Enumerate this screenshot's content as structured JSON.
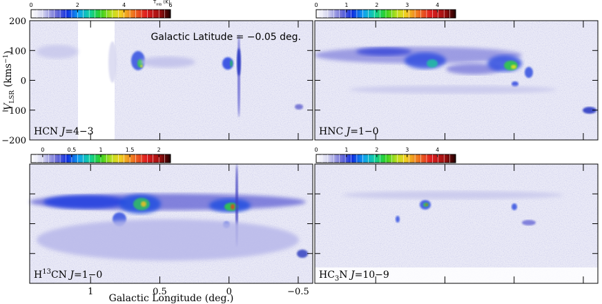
{
  "figure": {
    "annotation": "Galactic Latitude = −0.05 deg.",
    "x_axis": {
      "label": "Galactic Longitude (deg.)",
      "lim": [
        1.44,
        -0.605
      ],
      "ticks": [
        1,
        0.5,
        0,
        {
          "value": -0.5,
          "label": "−0.5"
        }
      ]
    },
    "y_axis": {
      "label": [
        "V",
        "LSR",
        " (kms",
        "−1",
        ")"
      ],
      "lim": [
        -200,
        200
      ],
      "ticks": [
        200,
        100,
        0,
        {
          "value": -100,
          "label": "−100"
        },
        {
          "value": -200,
          "label": "−200"
        }
      ]
    },
    "colorbar_title": [
      "T",
      "mb",
      " (K)"
    ],
    "panels": [
      {
        "label": [
          "HCN ",
          "J",
          "=4−3"
        ],
        "colorbar": {
          "lim": [
            0,
            6
          ],
          "ticks": [
            0,
            2,
            4,
            6
          ]
        }
      },
      {
        "label": [
          "HNC ",
          "J",
          "=1−0"
        ],
        "colorbar": {
          "lim": [
            0,
            4.6
          ],
          "ticks": [
            0,
            1,
            2,
            3,
            4
          ]
        }
      },
      {
        "label": [
          "H",
          "13",
          "CN ",
          "J",
          "=1−0"
        ],
        "colorbar": {
          "lim": [
            -0.2,
            2.2
          ],
          "ticks": [
            0,
            0.5,
            1,
            1.5,
            2
          ]
        }
      },
      {
        "label": [
          "HC",
          "3",
          "N ",
          "J",
          "=10−9"
        ],
        "colorbar": {
          "lim": [
            0,
            4.6
          ],
          "ticks": [
            0,
            1,
            2,
            3,
            4
          ]
        }
      }
    ]
  }
}
